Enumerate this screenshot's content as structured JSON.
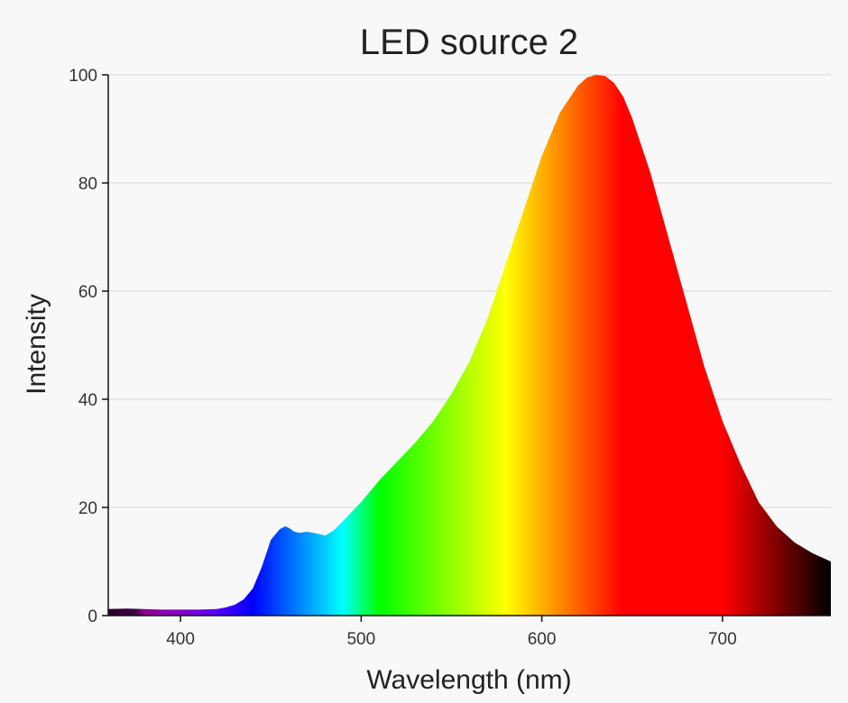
{
  "chart_data": {
    "type": "area",
    "title": "LED source 2",
    "xlabel": "Wavelength (nm)",
    "ylabel": "Intensity",
    "xlim": [
      360,
      760
    ],
    "ylim": [
      0,
      100
    ],
    "x_ticks": [
      400,
      500,
      600,
      700
    ],
    "y_ticks": [
      0,
      20,
      40,
      60,
      80,
      100
    ],
    "grid": "horizontal",
    "fill": "visible-spectrum gradient (color of each wavelength)",
    "series": [
      {
        "x": [
          360,
          370,
          380,
          390,
          400,
          410,
          420,
          425,
          430,
          435,
          440,
          445,
          450,
          455,
          458,
          460,
          463,
          466,
          470,
          475,
          480,
          485,
          490,
          500,
          510,
          520,
          530,
          540,
          550,
          560,
          570,
          580,
          590,
          600,
          610,
          620,
          625,
          630,
          635,
          640,
          645,
          650,
          660,
          670,
          680,
          690,
          700,
          710,
          720,
          730,
          740,
          750,
          760
        ],
        "y": [
          1.2,
          1.3,
          1.2,
          1.1,
          1.1,
          1.1,
          1.2,
          1.5,
          2.0,
          3.0,
          5.0,
          9.0,
          14.0,
          16.0,
          16.5,
          16.2,
          15.5,
          15.3,
          15.5,
          15.2,
          14.8,
          15.8,
          17.5,
          21.0,
          25.0,
          28.5,
          32.0,
          36.0,
          41.0,
          47.0,
          55.0,
          65.0,
          75.0,
          85.0,
          93.0,
          98.0,
          99.5,
          100.0,
          99.8,
          98.5,
          96.0,
          92.0,
          82.0,
          70.0,
          58.0,
          46.0,
          36.0,
          28.0,
          21.0,
          16.5,
          13.5,
          11.5,
          10.0
        ]
      }
    ]
  }
}
